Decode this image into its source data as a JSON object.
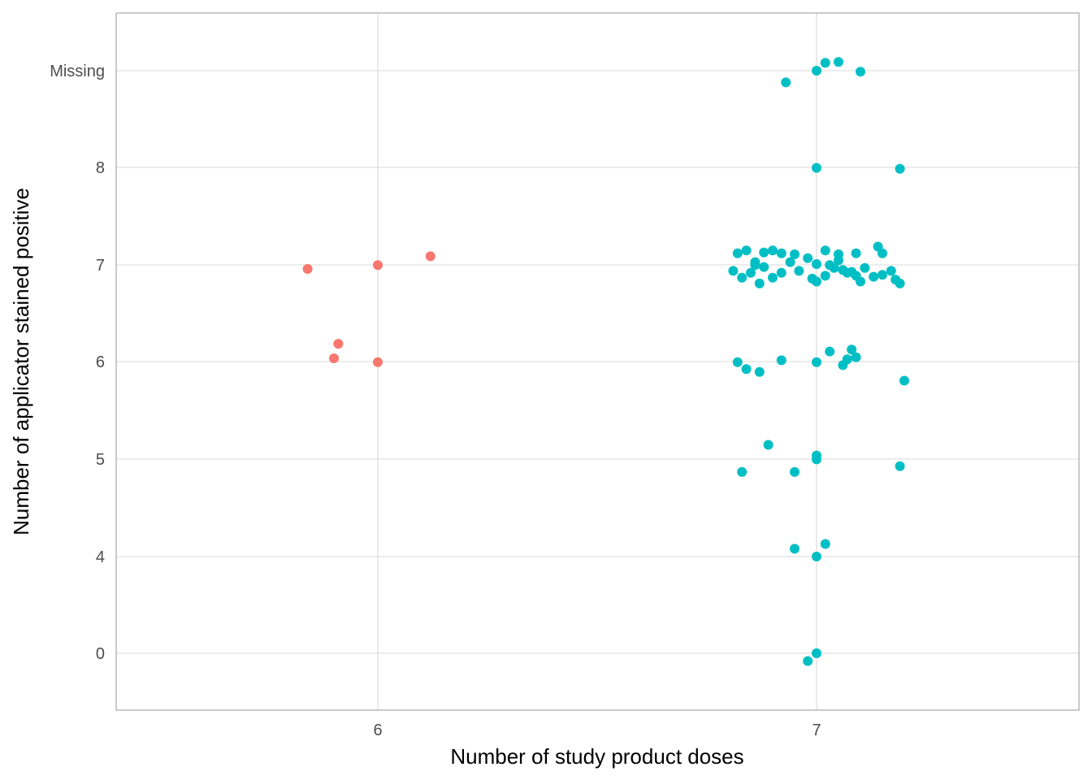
{
  "chart_data": {
    "type": "scatter",
    "xlabel": "Number of study product doses",
    "ylabel": "Number of applicator stained positive",
    "x_categories": [
      "6",
      "7"
    ],
    "y_categories": [
      "0",
      "4",
      "5",
      "6",
      "7",
      "8",
      "Missing"
    ],
    "grid": true,
    "legend": "none",
    "colors": {
      "6": "#f8766d",
      "7": "#00bfc4",
      "grid": "#d9d9d9",
      "border": "#a6a6a6"
    },
    "series": [
      {
        "group": "6",
        "points": [
          {
            "x": 5.84,
            "y": 6.96
          },
          {
            "x": 6.0,
            "y": 7.0
          },
          {
            "x": 6.12,
            "y": 7.09
          },
          {
            "x": 5.91,
            "y": 6.19
          },
          {
            "x": 5.9,
            "y": 6.04
          },
          {
            "x": 6.0,
            "y": 6.0
          }
        ]
      },
      {
        "group": "7",
        "points": [
          {
            "x": 6.93,
            "y": "Missing-0.12"
          },
          {
            "x": 7.0,
            "y": "Missing"
          },
          {
            "x": 7.02,
            "y": "Missing+0.08"
          },
          {
            "x": 7.05,
            "y": "Missing+0.09"
          },
          {
            "x": 7.1,
            "y": "Missing-0.01"
          },
          {
            "x": 7.0,
            "y": 8.0
          },
          {
            "x": 7.19,
            "y": 7.99
          },
          {
            "x": 6.82,
            "y": 7.12
          },
          {
            "x": 6.84,
            "y": 7.15
          },
          {
            "x": 6.86,
            "y": 7.0
          },
          {
            "x": 6.88,
            "y": 7.13
          },
          {
            "x": 6.9,
            "y": 7.15
          },
          {
            "x": 6.92,
            "y": 7.12
          },
          {
            "x": 6.95,
            "y": 7.11
          },
          {
            "x": 6.98,
            "y": 7.07
          },
          {
            "x": 7.0,
            "y": 7.01
          },
          {
            "x": 7.02,
            "y": 7.15
          },
          {
            "x": 7.05,
            "y": 7.11
          },
          {
            "x": 7.09,
            "y": 7.12
          },
          {
            "x": 7.14,
            "y": 7.19
          },
          {
            "x": 7.15,
            "y": 7.12
          },
          {
            "x": 6.81,
            "y": 6.94
          },
          {
            "x": 6.83,
            "y": 6.87
          },
          {
            "x": 6.85,
            "y": 6.92
          },
          {
            "x": 6.87,
            "y": 6.81
          },
          {
            "x": 6.9,
            "y": 6.87
          },
          {
            "x": 6.92,
            "y": 6.92
          },
          {
            "x": 6.94,
            "y": 7.03
          },
          {
            "x": 6.96,
            "y": 6.94
          },
          {
            "x": 6.99,
            "y": 6.86
          },
          {
            "x": 7.0,
            "y": 6.83
          },
          {
            "x": 7.02,
            "y": 6.89
          },
          {
            "x": 7.04,
            "y": 6.97
          },
          {
            "x": 7.06,
            "y": 6.95
          },
          {
            "x": 7.08,
            "y": 6.93
          },
          {
            "x": 7.1,
            "y": 6.83
          },
          {
            "x": 7.11,
            "y": 6.97
          },
          {
            "x": 7.13,
            "y": 6.88
          },
          {
            "x": 7.15,
            "y": 6.9
          },
          {
            "x": 7.17,
            "y": 6.94
          },
          {
            "x": 7.18,
            "y": 6.85
          },
          {
            "x": 7.19,
            "y": 6.81
          },
          {
            "x": 6.86,
            "y": 7.03
          },
          {
            "x": 6.88,
            "y": 6.98
          },
          {
            "x": 7.03,
            "y": 7.0
          },
          {
            "x": 7.05,
            "y": 7.05
          },
          {
            "x": 7.07,
            "y": 6.92
          },
          {
            "x": 7.09,
            "y": 6.89
          },
          {
            "x": 6.82,
            "y": 6.0
          },
          {
            "x": 6.84,
            "y": 5.93
          },
          {
            "x": 6.87,
            "y": 5.9
          },
          {
            "x": 6.92,
            "y": 6.02
          },
          {
            "x": 7.0,
            "y": 6.0
          },
          {
            "x": 7.03,
            "y": 6.11
          },
          {
            "x": 7.06,
            "y": 5.97
          },
          {
            "x": 7.07,
            "y": 6.03
          },
          {
            "x": 7.08,
            "y": 6.13
          },
          {
            "x": 7.09,
            "y": 6.05
          },
          {
            "x": 7.2,
            "y": 5.81
          },
          {
            "x": 6.89,
            "y": 5.15
          },
          {
            "x": 6.83,
            "y": 4.87
          },
          {
            "x": 6.95,
            "y": 4.87
          },
          {
            "x": 7.0,
            "y": 5.04
          },
          {
            "x": 7.0,
            "y": 5.0
          },
          {
            "x": 7.19,
            "y": 4.93
          },
          {
            "x": 6.95,
            "y": 4.08
          },
          {
            "x": 7.0,
            "y": 4.0
          },
          {
            "x": 7.02,
            "y": 4.13
          },
          {
            "x": 6.98,
            "y": -0.08
          },
          {
            "x": 7.0,
            "y": 0.0
          }
        ]
      }
    ]
  }
}
